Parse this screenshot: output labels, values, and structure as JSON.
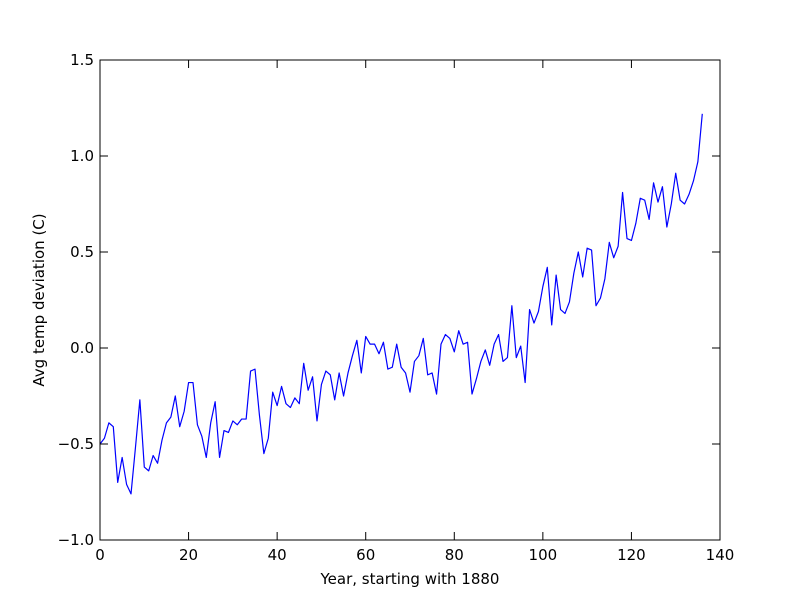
{
  "chart_data": {
    "type": "line",
    "title": "",
    "xlabel": "Year, starting with 1880",
    "ylabel": "Avg temp deviation (C)",
    "xlim": [
      0,
      140
    ],
    "ylim": [
      -1.0,
      1.5
    ],
    "xticks": [
      0,
      20,
      40,
      60,
      80,
      100,
      120,
      140
    ],
    "xtick_labels": [
      "0",
      "20",
      "40",
      "60",
      "80",
      "100",
      "120",
      "140"
    ],
    "yticks": [
      -1.0,
      -0.5,
      0.0,
      0.5,
      1.0,
      1.5
    ],
    "ytick_labels": [
      "−1.0",
      "−0.5",
      "0.0",
      "0.5",
      "1.0",
      "1.5"
    ],
    "grid": false,
    "legend": "none",
    "series": [
      {
        "color": "#0000ff",
        "x": [
          0,
          1,
          2,
          3,
          4,
          5,
          6,
          7,
          8,
          9,
          10,
          11,
          12,
          13,
          14,
          15,
          16,
          17,
          18,
          19,
          20,
          21,
          22,
          23,
          24,
          25,
          26,
          27,
          28,
          29,
          30,
          31,
          32,
          33,
          34,
          35,
          36,
          37,
          38,
          39,
          40,
          41,
          42,
          43,
          44,
          45,
          46,
          47,
          48,
          49,
          50,
          51,
          52,
          53,
          54,
          55,
          56,
          57,
          58,
          59,
          60,
          61,
          62,
          63,
          64,
          65,
          66,
          67,
          68,
          69,
          70,
          71,
          72,
          73,
          74,
          75,
          76,
          77,
          78,
          79,
          80,
          81,
          82,
          83,
          84,
          85,
          86,
          87,
          88,
          89,
          90,
          91,
          92,
          93,
          94,
          95,
          96,
          97,
          98,
          99,
          100,
          101,
          102,
          103,
          104,
          105,
          106,
          107,
          108,
          109,
          110,
          111,
          112,
          113,
          114,
          115,
          116,
          117,
          118,
          119,
          120,
          121,
          122,
          123,
          124,
          125,
          126,
          127,
          128,
          129,
          130,
          131,
          132,
          133,
          134,
          135,
          136
        ],
        "values": [
          -0.5,
          -0.47,
          -0.39,
          -0.41,
          -0.7,
          -0.57,
          -0.71,
          -0.76,
          -0.52,
          -0.27,
          -0.62,
          -0.64,
          -0.56,
          -0.6,
          -0.48,
          -0.39,
          -0.36,
          -0.25,
          -0.41,
          -0.33,
          -0.18,
          -0.18,
          -0.4,
          -0.46,
          -0.57,
          -0.39,
          -0.28,
          -0.57,
          -0.43,
          -0.44,
          -0.38,
          -0.4,
          -0.37,
          -0.37,
          -0.12,
          -0.11,
          -0.35,
          -0.55,
          -0.47,
          -0.23,
          -0.3,
          -0.2,
          -0.29,
          -0.31,
          -0.26,
          -0.29,
          -0.08,
          -0.22,
          -0.15,
          -0.38,
          -0.19,
          -0.12,
          -0.14,
          -0.27,
          -0.13,
          -0.25,
          -0.13,
          -0.04,
          0.04,
          -0.13,
          0.06,
          0.02,
          0.02,
          -0.03,
          0.03,
          -0.11,
          -0.1,
          0.02,
          -0.1,
          -0.13,
          -0.23,
          -0.07,
          -0.04,
          0.05,
          -0.14,
          -0.13,
          -0.24,
          0.02,
          0.07,
          0.05,
          -0.02,
          0.09,
          0.02,
          0.03,
          -0.24,
          -0.16,
          -0.07,
          -0.01,
          -0.09,
          0.02,
          0.07,
          -0.07,
          -0.05,
          0.22,
          -0.05,
          0.01,
          -0.18,
          0.2,
          0.13,
          0.19,
          0.32,
          0.42,
          0.12,
          0.38,
          0.2,
          0.18,
          0.24,
          0.39,
          0.5,
          0.37,
          0.52,
          0.51,
          0.22,
          0.26,
          0.36,
          0.55,
          0.47,
          0.53,
          0.81,
          0.57,
          0.56,
          0.65,
          0.78,
          0.77,
          0.67,
          0.86,
          0.76,
          0.84,
          0.63,
          0.75,
          0.91,
          0.77,
          0.75,
          0.8,
          0.87,
          0.97,
          1.22
        ]
      }
    ]
  }
}
